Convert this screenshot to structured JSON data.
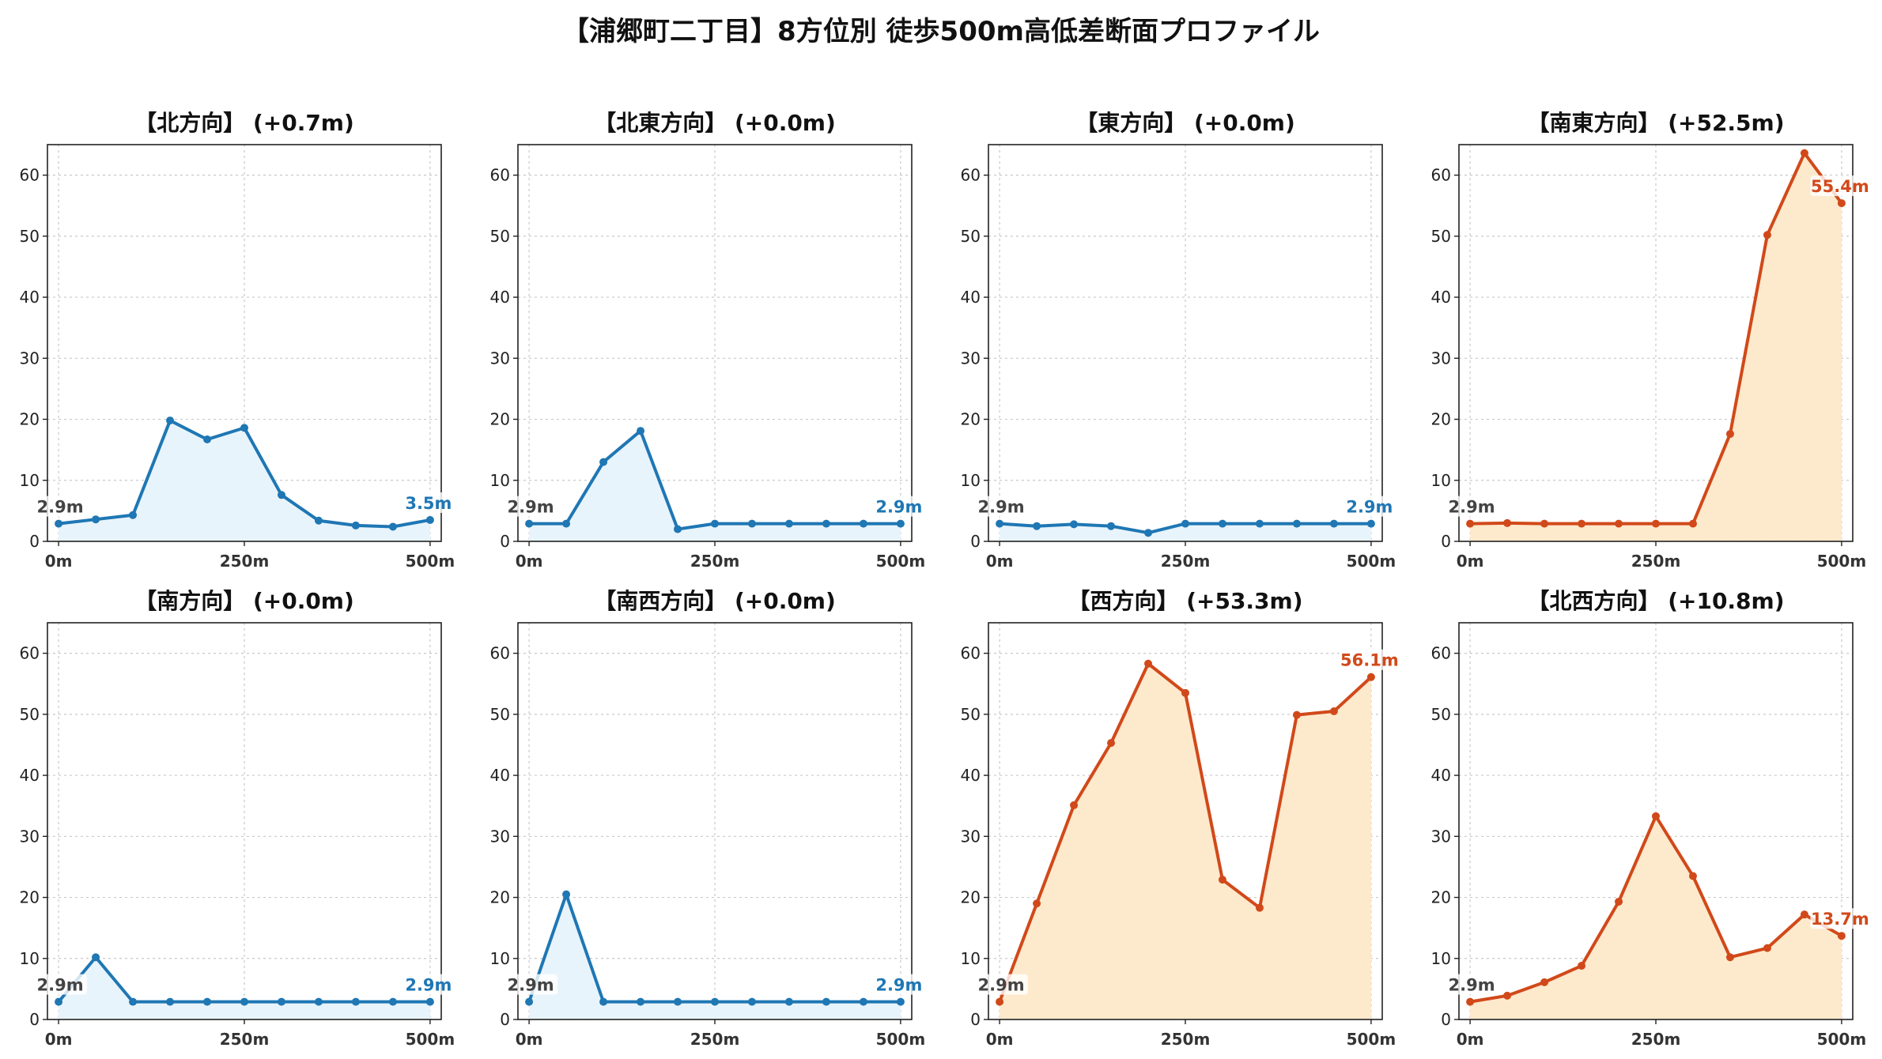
{
  "title": "【浦郷町二丁目】8方位別 徒歩500m高低差断面プロファイル",
  "colors": {
    "blue": "#1f77b4",
    "blue_fill": "#e8f4fb",
    "red": "#d1491a",
    "red_fill": "#fde9cc",
    "start_label": "#444444"
  },
  "chart_data": [
    {
      "type": "area",
      "title": "【北方向】 (+0.7m)",
      "color": "blue",
      "x": [
        0,
        50,
        100,
        150,
        200,
        250,
        300,
        350,
        400,
        450,
        500
      ],
      "y": [
        2.9,
        3.6,
        4.3,
        19.8,
        16.7,
        18.6,
        7.6,
        3.4,
        2.6,
        2.4,
        3.5
      ],
      "xticks": [
        "0m",
        "250m",
        "500m"
      ],
      "ylim": [
        0,
        65
      ],
      "yticks": [
        "0",
        "10",
        "20",
        "30",
        "40",
        "50",
        "60"
      ],
      "start_label": "2.9m",
      "end_label": "3.5m",
      "grid": true
    },
    {
      "type": "area",
      "title": "【北東方向】 (+0.0m)",
      "color": "blue",
      "x": [
        0,
        50,
        100,
        150,
        200,
        250,
        300,
        350,
        400,
        450,
        500
      ],
      "y": [
        2.9,
        2.9,
        13.0,
        18.1,
        2.0,
        2.9,
        2.9,
        2.9,
        2.9,
        2.9,
        2.9
      ],
      "xticks": [
        "0m",
        "250m",
        "500m"
      ],
      "ylim": [
        0,
        65
      ],
      "yticks": [
        "0",
        "10",
        "20",
        "30",
        "40",
        "50",
        "60"
      ],
      "start_label": "2.9m",
      "end_label": "2.9m",
      "grid": true
    },
    {
      "type": "area",
      "title": "【東方向】 (+0.0m)",
      "color": "blue",
      "x": [
        0,
        50,
        100,
        150,
        200,
        250,
        300,
        350,
        400,
        450,
        500
      ],
      "y": [
        2.9,
        2.5,
        2.8,
        2.5,
        1.4,
        2.9,
        2.9,
        2.9,
        2.9,
        2.9,
        2.9
      ],
      "xticks": [
        "0m",
        "250m",
        "500m"
      ],
      "ylim": [
        0,
        65
      ],
      "yticks": [
        "0",
        "10",
        "20",
        "30",
        "40",
        "50",
        "60"
      ],
      "start_label": "2.9m",
      "end_label": "2.9m",
      "grid": true
    },
    {
      "type": "area",
      "title": "【南東方向】 (+52.5m)",
      "color": "red",
      "x": [
        0,
        50,
        100,
        150,
        200,
        250,
        300,
        350,
        400,
        450,
        500
      ],
      "y": [
        2.9,
        3.0,
        2.9,
        2.9,
        2.9,
        2.9,
        2.9,
        17.6,
        50.2,
        63.6,
        55.4
      ],
      "xticks": [
        "0m",
        "250m",
        "500m"
      ],
      "ylim": [
        0,
        65
      ],
      "yticks": [
        "0",
        "10",
        "20",
        "30",
        "40",
        "50",
        "60"
      ],
      "start_label": "2.9m",
      "end_label": "55.4m",
      "grid": true
    },
    {
      "type": "area",
      "title": "【南方向】 (+0.0m)",
      "color": "blue",
      "x": [
        0,
        50,
        100,
        150,
        200,
        250,
        300,
        350,
        400,
        450,
        500
      ],
      "y": [
        2.9,
        10.2,
        2.9,
        2.9,
        2.9,
        2.9,
        2.9,
        2.9,
        2.9,
        2.9,
        2.9
      ],
      "xticks": [
        "0m",
        "250m",
        "500m"
      ],
      "ylim": [
        0,
        65
      ],
      "yticks": [
        "0",
        "10",
        "20",
        "30",
        "40",
        "50",
        "60"
      ],
      "start_label": "2.9m",
      "end_label": "2.9m",
      "grid": true
    },
    {
      "type": "area",
      "title": "【南西方向】 (+0.0m)",
      "color": "blue",
      "x": [
        0,
        50,
        100,
        150,
        200,
        250,
        300,
        350,
        400,
        450,
        500
      ],
      "y": [
        2.9,
        20.5,
        2.9,
        2.9,
        2.9,
        2.9,
        2.9,
        2.9,
        2.9,
        2.9,
        2.9
      ],
      "xticks": [
        "0m",
        "250m",
        "500m"
      ],
      "ylim": [
        0,
        65
      ],
      "yticks": [
        "0",
        "10",
        "20",
        "30",
        "40",
        "50",
        "60"
      ],
      "start_label": "2.9m",
      "end_label": "2.9m",
      "grid": true
    },
    {
      "type": "area",
      "title": "【西方向】 (+53.3m)",
      "color": "red",
      "x": [
        0,
        50,
        100,
        150,
        200,
        250,
        300,
        350,
        400,
        450,
        500
      ],
      "y": [
        2.9,
        19.0,
        35.1,
        45.3,
        58.3,
        53.5,
        22.9,
        18.3,
        49.9,
        50.5,
        56.1
      ],
      "xticks": [
        "0m",
        "250m",
        "500m"
      ],
      "ylim": [
        0,
        65
      ],
      "yticks": [
        "0",
        "10",
        "20",
        "30",
        "40",
        "50",
        "60"
      ],
      "start_label": "2.9m",
      "end_label": "56.1m",
      "grid": true
    },
    {
      "type": "area",
      "title": "【北西方向】 (+10.8m)",
      "color": "red",
      "x": [
        0,
        50,
        100,
        150,
        200,
        250,
        300,
        350,
        400,
        450,
        500
      ],
      "y": [
        2.9,
        3.9,
        6.1,
        8.8,
        19.3,
        33.3,
        23.5,
        10.2,
        11.7,
        17.2,
        13.7
      ],
      "xticks": [
        "0m",
        "250m",
        "500m"
      ],
      "ylim": [
        0,
        65
      ],
      "yticks": [
        "0",
        "10",
        "20",
        "30",
        "40",
        "50",
        "60"
      ],
      "start_label": "2.9m",
      "end_label": "13.7m",
      "grid": true
    }
  ]
}
